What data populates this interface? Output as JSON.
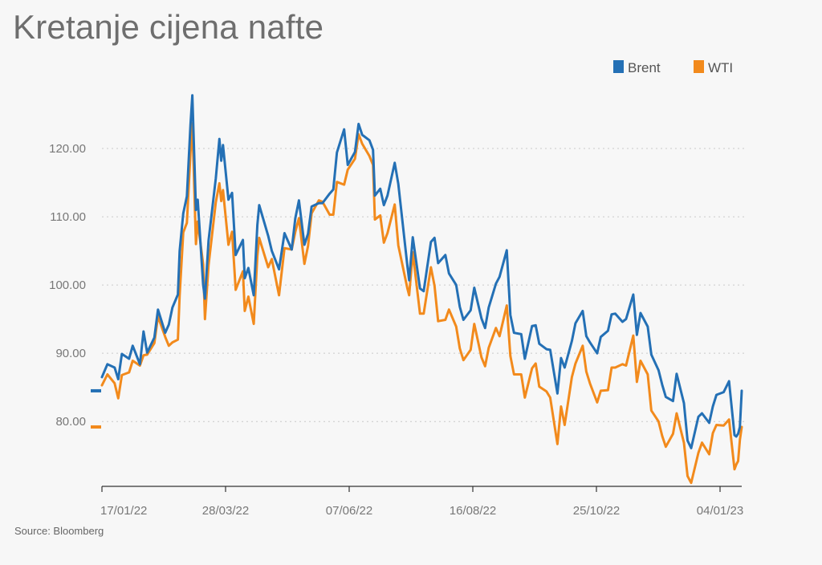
{
  "colors": {
    "brent": "#2470b5",
    "wti": "#f28a1c",
    "grid": "#c9c9c9",
    "axis": "#333333"
  },
  "chart_data": {
    "type": "line",
    "title": "Kretanje cijena nafte",
    "source": "Source: Bloomberg",
    "legend_position": "top-right",
    "grid": true,
    "ylim": [
      70.5,
      130
    ],
    "y_ticks": [
      80,
      90,
      100,
      110,
      120
    ],
    "y_tick_labels": [
      "80.00",
      "90.00",
      "100.00",
      "110.00",
      "120.00"
    ],
    "x_tick_labels": [
      "17/01/22",
      "28/03/22",
      "07/06/22",
      "16/08/22",
      "25/10/22",
      "04/01/23"
    ],
    "x_range": [
      "2022-01-17",
      "2023-01-06"
    ],
    "series": [
      {
        "name": "Brent",
        "color": "#2470b5",
        "last_value": 84.5,
        "points": [
          [
            "2022-01-17",
            86.5
          ],
          [
            "2022-01-20",
            88.4
          ],
          [
            "2022-01-24",
            87.9
          ],
          [
            "2022-01-26",
            86.2
          ],
          [
            "2022-01-28",
            89.9
          ],
          [
            "2022-02-01",
            89.2
          ],
          [
            "2022-02-03",
            91.1
          ],
          [
            "2022-02-07",
            88.4
          ],
          [
            "2022-02-09",
            93.2
          ],
          [
            "2022-02-11",
            90.1
          ],
          [
            "2022-02-15",
            92.3
          ],
          [
            "2022-02-17",
            96.4
          ],
          [
            "2022-02-21",
            93.0
          ],
          [
            "2022-02-23",
            94.2
          ],
          [
            "2022-02-25",
            96.7
          ],
          [
            "2022-02-28",
            98.6
          ],
          [
            "2022-03-01",
            105.0
          ],
          [
            "2022-03-03",
            110.5
          ],
          [
            "2022-03-05",
            113.0
          ],
          [
            "2022-03-07",
            123.5
          ],
          [
            "2022-03-08",
            127.8
          ],
          [
            "2022-03-10",
            111.0
          ],
          [
            "2022-03-11",
            112.5
          ],
          [
            "2022-03-14",
            100.0
          ],
          [
            "2022-03-15",
            98.0
          ],
          [
            "2022-03-17",
            106.5
          ],
          [
            "2022-03-21",
            115.6
          ],
          [
            "2022-03-23",
            121.4
          ],
          [
            "2022-03-24",
            118.2
          ],
          [
            "2022-03-25",
            120.5
          ],
          [
            "2022-03-28",
            112.5
          ],
          [
            "2022-03-30",
            113.5
          ],
          [
            "2022-04-01",
            104.4
          ],
          [
            "2022-04-05",
            106.6
          ],
          [
            "2022-04-06",
            101.0
          ],
          [
            "2022-04-08",
            102.5
          ],
          [
            "2022-04-11",
            98.5
          ],
          [
            "2022-04-13",
            108.8
          ],
          [
            "2022-04-14",
            111.7
          ],
          [
            "2022-04-19",
            107.2
          ],
          [
            "2022-04-21",
            105.0
          ],
          [
            "2022-04-25",
            102.3
          ],
          [
            "2022-04-28",
            107.6
          ],
          [
            "2022-05-02",
            105.2
          ],
          [
            "2022-05-04",
            109.8
          ],
          [
            "2022-05-06",
            112.4
          ],
          [
            "2022-05-09",
            105.9
          ],
          [
            "2022-05-11",
            107.5
          ],
          [
            "2022-05-13",
            111.5
          ],
          [
            "2022-05-17",
            112.0
          ],
          [
            "2022-05-19",
            112.0
          ],
          [
            "2022-05-23",
            113.4
          ],
          [
            "2022-05-25",
            114.0
          ],
          [
            "2022-05-27",
            119.4
          ],
          [
            "2022-05-31",
            122.8
          ],
          [
            "2022-06-02",
            117.6
          ],
          [
            "2022-06-06",
            119.5
          ],
          [
            "2022-06-08",
            123.6
          ],
          [
            "2022-06-10",
            122.0
          ],
          [
            "2022-06-14",
            121.2
          ],
          [
            "2022-06-16",
            119.8
          ],
          [
            "2022-06-17",
            113.1
          ],
          [
            "2022-06-20",
            114.1
          ],
          [
            "2022-06-22",
            111.7
          ],
          [
            "2022-06-24",
            113.1
          ],
          [
            "2022-06-28",
            117.9
          ],
          [
            "2022-06-30",
            114.8
          ],
          [
            "2022-07-05",
            102.8
          ],
          [
            "2022-07-06",
            100.7
          ],
          [
            "2022-07-08",
            107.0
          ],
          [
            "2022-07-12",
            99.5
          ],
          [
            "2022-07-14",
            99.1
          ],
          [
            "2022-07-18",
            106.3
          ],
          [
            "2022-07-20",
            106.9
          ],
          [
            "2022-07-22",
            103.2
          ],
          [
            "2022-07-26",
            104.4
          ],
          [
            "2022-07-28",
            101.7
          ],
          [
            "2022-08-01",
            100.0
          ],
          [
            "2022-08-03",
            96.8
          ],
          [
            "2022-08-05",
            94.9
          ],
          [
            "2022-08-09",
            96.3
          ],
          [
            "2022-08-11",
            99.6
          ],
          [
            "2022-08-15",
            95.1
          ],
          [
            "2022-08-17",
            93.7
          ],
          [
            "2022-08-19",
            96.7
          ],
          [
            "2022-08-23",
            100.2
          ],
          [
            "2022-08-25",
            101.2
          ],
          [
            "2022-08-29",
            105.1
          ],
          [
            "2022-08-31",
            95.6
          ],
          [
            "2022-09-02",
            93.0
          ],
          [
            "2022-09-06",
            92.8
          ],
          [
            "2022-09-08",
            89.2
          ],
          [
            "2022-09-12",
            94.0
          ],
          [
            "2022-09-14",
            94.1
          ],
          [
            "2022-09-16",
            91.4
          ],
          [
            "2022-09-20",
            90.6
          ],
          [
            "2022-09-22",
            90.5
          ],
          [
            "2022-09-26",
            84.1
          ],
          [
            "2022-09-28",
            89.3
          ],
          [
            "2022-09-30",
            87.9
          ],
          [
            "2022-10-04",
            91.8
          ],
          [
            "2022-10-06",
            94.4
          ],
          [
            "2022-10-10",
            96.2
          ],
          [
            "2022-10-12",
            92.5
          ],
          [
            "2022-10-14",
            91.6
          ],
          [
            "2022-10-18",
            90.0
          ],
          [
            "2022-10-20",
            92.4
          ],
          [
            "2022-10-24",
            93.3
          ],
          [
            "2022-10-26",
            95.7
          ],
          [
            "2022-10-28",
            95.8
          ],
          [
            "2022-11-01",
            94.6
          ],
          [
            "2022-11-03",
            95.0
          ],
          [
            "2022-11-07",
            98.6
          ],
          [
            "2022-11-09",
            92.7
          ],
          [
            "2022-11-11",
            95.9
          ],
          [
            "2022-11-15",
            93.9
          ],
          [
            "2022-11-17",
            89.8
          ],
          [
            "2022-11-21",
            87.5
          ],
          [
            "2022-11-23",
            85.4
          ],
          [
            "2022-11-25",
            83.6
          ],
          [
            "2022-11-29",
            83.0
          ],
          [
            "2022-12-01",
            87.0
          ],
          [
            "2022-12-05",
            82.7
          ],
          [
            "2022-12-07",
            77.2
          ],
          [
            "2022-12-09",
            76.1
          ],
          [
            "2022-12-13",
            80.7
          ],
          [
            "2022-12-15",
            81.2
          ],
          [
            "2022-12-19",
            79.8
          ],
          [
            "2022-12-21",
            82.2
          ],
          [
            "2022-12-23",
            83.9
          ],
          [
            "2022-12-27",
            84.3
          ],
          [
            "2022-12-30",
            85.9
          ],
          [
            "2023-01-02",
            78.0
          ],
          [
            "2023-01-03",
            77.8
          ],
          [
            "2023-01-04",
            78.2
          ],
          [
            "2023-01-05",
            79.2
          ],
          [
            "2023-01-06",
            84.5
          ]
        ]
      },
      {
        "name": "WTI",
        "color": "#f28a1c",
        "last_value": 79.2,
        "points": [
          [
            "2022-01-17",
            85.3
          ],
          [
            "2022-01-20",
            86.9
          ],
          [
            "2022-01-24",
            85.6
          ],
          [
            "2022-01-26",
            83.4
          ],
          [
            "2022-01-28",
            86.8
          ],
          [
            "2022-02-01",
            87.2
          ],
          [
            "2022-02-03",
            88.9
          ],
          [
            "2022-02-07",
            88.2
          ],
          [
            "2022-02-09",
            89.7
          ],
          [
            "2022-02-11",
            89.8
          ],
          [
            "2022-02-15",
            91.5
          ],
          [
            "2022-02-17",
            95.4
          ],
          [
            "2022-02-21",
            92.4
          ],
          [
            "2022-02-23",
            91.1
          ],
          [
            "2022-02-25",
            91.6
          ],
          [
            "2022-02-28",
            92.0
          ],
          [
            "2022-03-01",
            98.5
          ],
          [
            "2022-03-03",
            107.7
          ],
          [
            "2022-03-05",
            109.1
          ],
          [
            "2022-03-07",
            119.4
          ],
          [
            "2022-03-08",
            123.7
          ],
          [
            "2022-03-10",
            106.0
          ],
          [
            "2022-03-11",
            109.3
          ],
          [
            "2022-03-14",
            103.0
          ],
          [
            "2022-03-15",
            95.0
          ],
          [
            "2022-03-17",
            102.9
          ],
          [
            "2022-03-21",
            112.1
          ],
          [
            "2022-03-23",
            114.9
          ],
          [
            "2022-03-24",
            112.3
          ],
          [
            "2022-03-25",
            113.9
          ],
          [
            "2022-03-28",
            105.9
          ],
          [
            "2022-03-30",
            107.8
          ],
          [
            "2022-04-01",
            99.3
          ],
          [
            "2022-04-05",
            102.0
          ],
          [
            "2022-04-06",
            96.2
          ],
          [
            "2022-04-08",
            98.3
          ],
          [
            "2022-04-11",
            94.3
          ],
          [
            "2022-04-13",
            104.3
          ],
          [
            "2022-04-14",
            106.9
          ],
          [
            "2022-04-19",
            102.6
          ],
          [
            "2022-04-21",
            103.8
          ],
          [
            "2022-04-25",
            98.5
          ],
          [
            "2022-04-28",
            105.4
          ],
          [
            "2022-05-02",
            105.2
          ],
          [
            "2022-05-04",
            107.8
          ],
          [
            "2022-05-06",
            109.8
          ],
          [
            "2022-05-09",
            103.1
          ],
          [
            "2022-05-11",
            105.7
          ],
          [
            "2022-05-13",
            110.5
          ],
          [
            "2022-05-17",
            112.4
          ],
          [
            "2022-05-19",
            112.2
          ],
          [
            "2022-05-23",
            110.3
          ],
          [
            "2022-05-25",
            110.3
          ],
          [
            "2022-05-27",
            115.1
          ],
          [
            "2022-05-31",
            114.7
          ],
          [
            "2022-06-02",
            116.9
          ],
          [
            "2022-06-06",
            118.5
          ],
          [
            "2022-06-08",
            122.1
          ],
          [
            "2022-06-10",
            120.7
          ],
          [
            "2022-06-14",
            118.9
          ],
          [
            "2022-06-16",
            117.6
          ],
          [
            "2022-06-17",
            109.6
          ],
          [
            "2022-06-20",
            110.2
          ],
          [
            "2022-06-22",
            106.2
          ],
          [
            "2022-06-24",
            107.6
          ],
          [
            "2022-06-28",
            111.8
          ],
          [
            "2022-06-30",
            105.8
          ],
          [
            "2022-07-05",
            99.5
          ],
          [
            "2022-07-06",
            98.5
          ],
          [
            "2022-07-08",
            104.8
          ],
          [
            "2022-07-12",
            95.8
          ],
          [
            "2022-07-14",
            95.8
          ],
          [
            "2022-07-18",
            102.6
          ],
          [
            "2022-07-20",
            99.9
          ],
          [
            "2022-07-22",
            94.7
          ],
          [
            "2022-07-26",
            94.9
          ],
          [
            "2022-07-28",
            96.4
          ],
          [
            "2022-08-01",
            93.9
          ],
          [
            "2022-08-03",
            90.7
          ],
          [
            "2022-08-05",
            89.0
          ],
          [
            "2022-08-09",
            90.5
          ],
          [
            "2022-08-11",
            94.3
          ],
          [
            "2022-08-15",
            89.4
          ],
          [
            "2022-08-17",
            88.1
          ],
          [
            "2022-08-19",
            90.8
          ],
          [
            "2022-08-23",
            93.7
          ],
          [
            "2022-08-25",
            92.5
          ],
          [
            "2022-08-29",
            97.0
          ],
          [
            "2022-08-31",
            89.6
          ],
          [
            "2022-09-02",
            86.9
          ],
          [
            "2022-09-06",
            86.9
          ],
          [
            "2022-09-08",
            83.5
          ],
          [
            "2022-09-12",
            87.8
          ],
          [
            "2022-09-14",
            88.5
          ],
          [
            "2022-09-16",
            85.1
          ],
          [
            "2022-09-20",
            84.4
          ],
          [
            "2022-09-22",
            83.5
          ],
          [
            "2022-09-26",
            76.7
          ],
          [
            "2022-09-28",
            82.2
          ],
          [
            "2022-09-30",
            79.5
          ],
          [
            "2022-10-04",
            86.5
          ],
          [
            "2022-10-06",
            88.5
          ],
          [
            "2022-10-10",
            91.1
          ],
          [
            "2022-10-12",
            87.3
          ],
          [
            "2022-10-14",
            85.6
          ],
          [
            "2022-10-18",
            82.8
          ],
          [
            "2022-10-20",
            84.5
          ],
          [
            "2022-10-24",
            84.6
          ],
          [
            "2022-10-26",
            87.9
          ],
          [
            "2022-10-28",
            87.9
          ],
          [
            "2022-11-01",
            88.4
          ],
          [
            "2022-11-03",
            88.2
          ],
          [
            "2022-11-07",
            92.6
          ],
          [
            "2022-11-09",
            85.8
          ],
          [
            "2022-11-11",
            88.9
          ],
          [
            "2022-11-15",
            86.9
          ],
          [
            "2022-11-17",
            81.6
          ],
          [
            "2022-11-21",
            80.0
          ],
          [
            "2022-11-23",
            77.9
          ],
          [
            "2022-11-25",
            76.3
          ],
          [
            "2022-11-29",
            78.2
          ],
          [
            "2022-12-01",
            81.2
          ],
          [
            "2022-12-05",
            76.9
          ],
          [
            "2022-12-07",
            72.0
          ],
          [
            "2022-12-09",
            71.0
          ],
          [
            "2022-12-13",
            75.4
          ],
          [
            "2022-12-15",
            76.9
          ],
          [
            "2022-12-19",
            75.2
          ],
          [
            "2022-12-21",
            78.3
          ],
          [
            "2022-12-23",
            79.5
          ],
          [
            "2022-12-27",
            79.4
          ],
          [
            "2022-12-30",
            80.3
          ],
          [
            "2023-01-02",
            73.0
          ],
          [
            "2023-01-03",
            73.7
          ],
          [
            "2023-01-04",
            74.2
          ],
          [
            "2023-01-05",
            77.3
          ],
          [
            "2023-01-06",
            79.2
          ]
        ]
      }
    ]
  }
}
